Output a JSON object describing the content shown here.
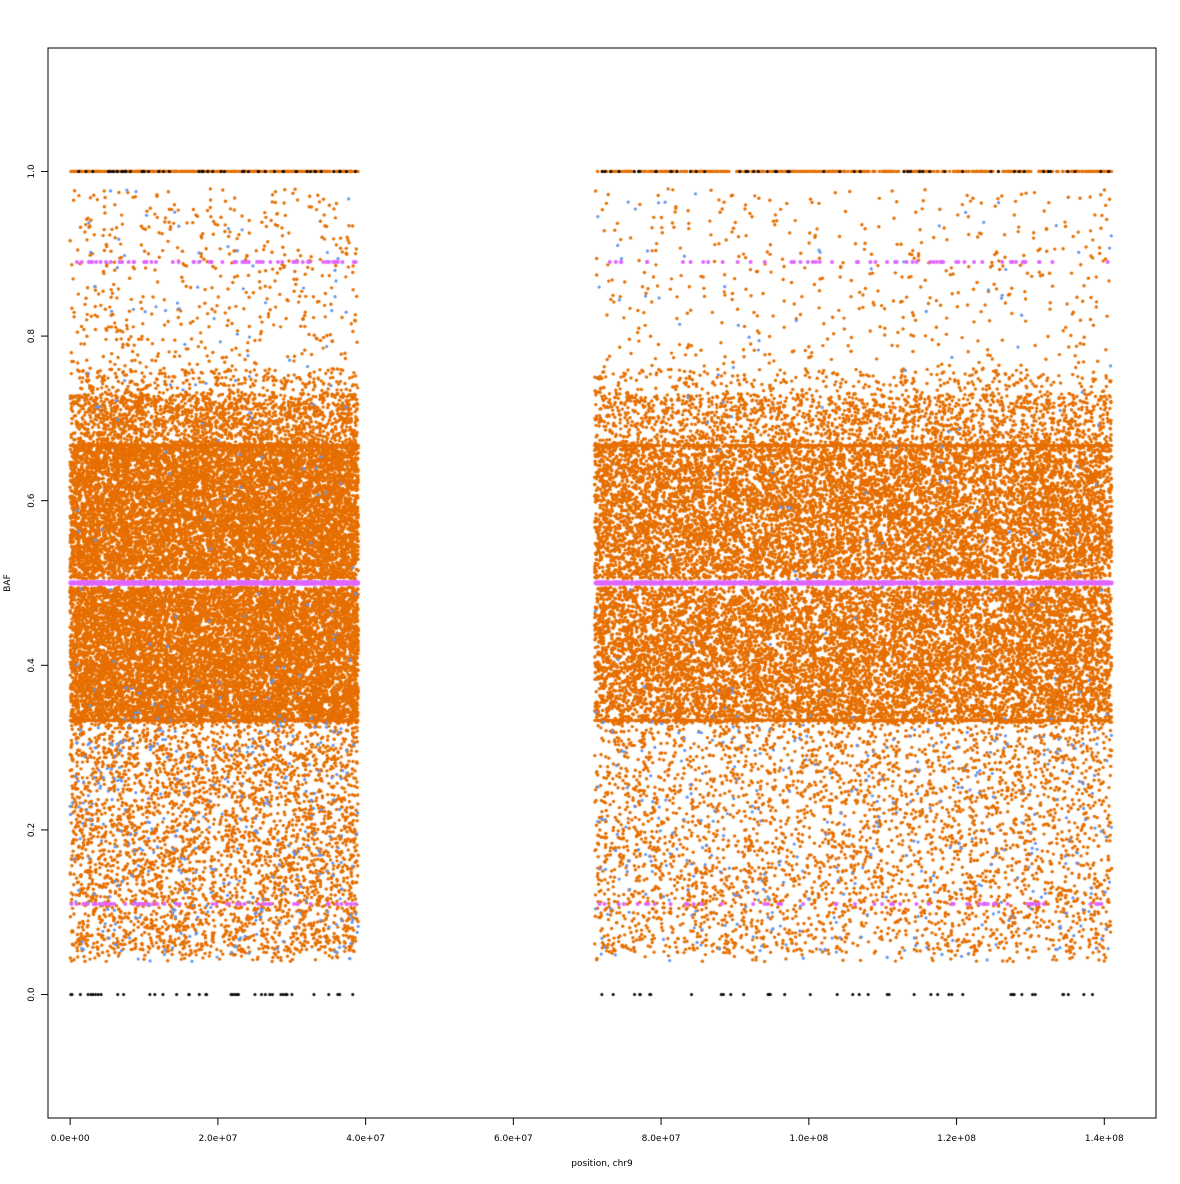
{
  "chart_data": {
    "type": "scatter",
    "title": "",
    "xlabel": "position, chr9",
    "ylabel": "BAF",
    "xlim": [
      -3000000,
      147000000
    ],
    "ylim": [
      -0.15,
      1.15
    ],
    "x_ticks": [
      {
        "value": 0,
        "label": "0.0e+00"
      },
      {
        "value": 20000000,
        "label": "2.0e+07"
      },
      {
        "value": 40000000,
        "label": "4.0e+07"
      },
      {
        "value": 60000000,
        "label": "6.0e+07"
      },
      {
        "value": 80000000,
        "label": "8.0e+07"
      },
      {
        "value": 100000000,
        "label": "1.0e+08"
      },
      {
        "value": 120000000,
        "label": "1.2e+08"
      },
      {
        "value": 140000000,
        "label": "1.4e+08"
      }
    ],
    "y_ticks": [
      {
        "value": 0.0,
        "label": "0.0"
      },
      {
        "value": 0.2,
        "label": "0.2"
      },
      {
        "value": 0.4,
        "label": "0.4"
      },
      {
        "value": 0.6,
        "label": "0.6"
      },
      {
        "value": 0.8,
        "label": "0.8"
      },
      {
        "value": 1.0,
        "label": "1.0"
      }
    ],
    "grid": false,
    "legend": "none",
    "regions": [
      {
        "x_start": 0,
        "x_end": 39000000
      },
      {
        "x_start": 71000000,
        "x_end": 141000000
      }
    ],
    "colors": {
      "heterozygous": "#e66f00",
      "other": "#6495ed",
      "bands": "#e066ff",
      "homozygous": "#000000"
    },
    "series": [
      {
        "color_key": "heterozygous",
        "description_values": {
          "dense_bands": [
            [
              0.33,
              0.495
            ],
            [
              0.505,
              0.67
            ]
          ],
          "sparse_range": [
            0.04,
            1.0
          ],
          "lines": [
            0.333,
            0.667,
            1.0
          ]
        }
      },
      {
        "color_key": "bands",
        "lines": [
          0.11,
          0.5,
          0.89
        ]
      },
      {
        "color_key": "homozygous",
        "lines": [
          0.0,
          1.0
        ]
      }
    ]
  }
}
